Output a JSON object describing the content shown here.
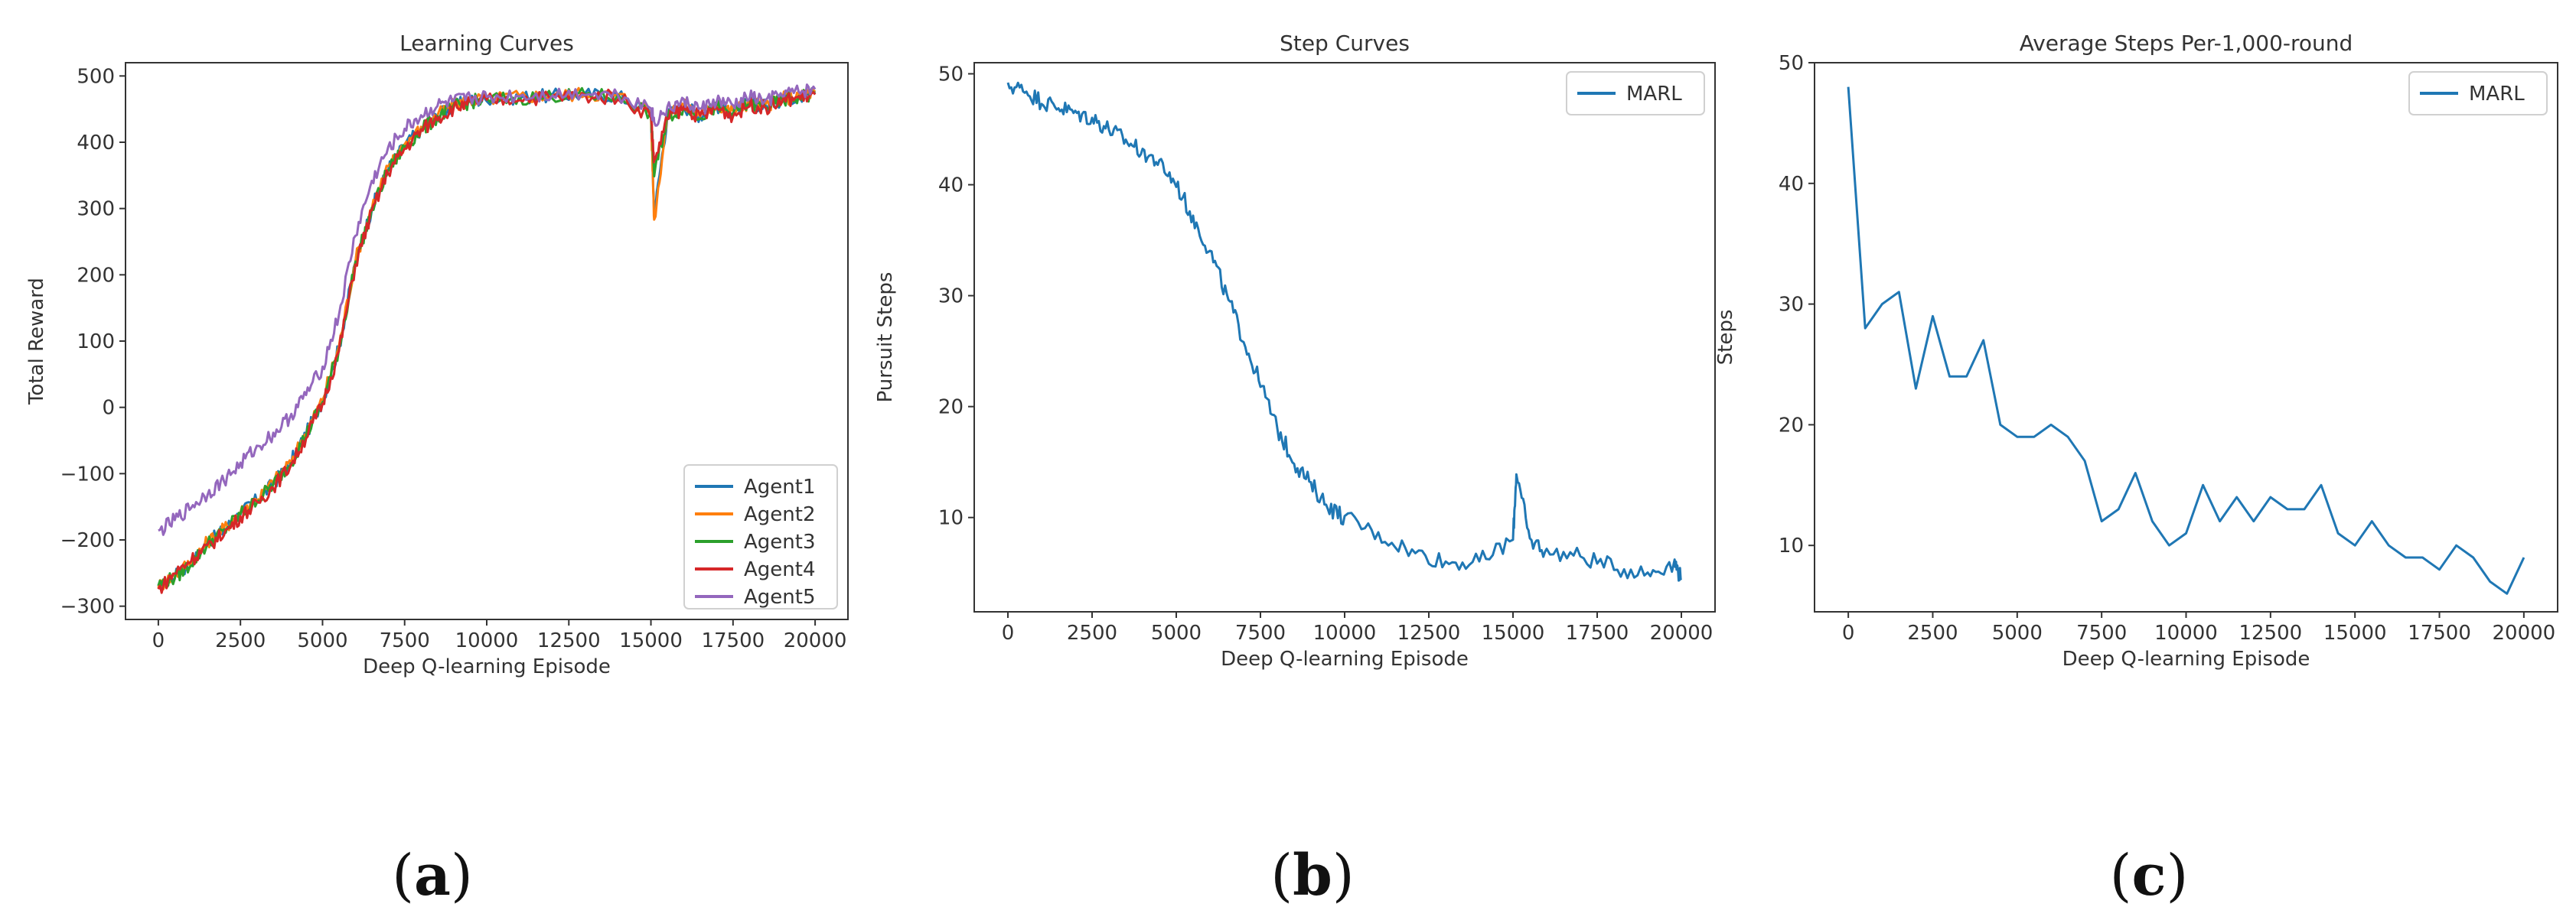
{
  "chart_data": [
    {
      "id": "a",
      "caption": "a",
      "type": "line",
      "title": "Learning Curves",
      "xlabel": "Deep Q-learning Episode",
      "ylabel": "Total Reward",
      "xlim": [
        -1000,
        21000
      ],
      "ylim": [
        -320,
        520
      ],
      "xticks": [
        0,
        2500,
        5000,
        7500,
        10000,
        12500,
        15000,
        17500,
        20000
      ],
      "xtick_labels": [
        "0",
        "2500",
        "5000",
        "7500",
        "10000",
        "12500",
        "15000",
        "17500",
        "20000"
      ],
      "yticks": [
        -300,
        -200,
        -100,
        0,
        100,
        200,
        300,
        400,
        500
      ],
      "ytick_labels": [
        "−300",
        "−200",
        "−100",
        "0",
        "100",
        "200",
        "300",
        "400",
        "500"
      ],
      "legend": "bottom-right",
      "series": [
        {
          "name": "Agent1",
          "color": "#1f77b4",
          "x": [
            0,
            500,
            1000,
            1500,
            2000,
            2500,
            3000,
            3500,
            4000,
            4500,
            5000,
            5500,
            6000,
            6500,
            7000,
            7500,
            8000,
            8500,
            9000,
            9500,
            10000,
            11000,
            12000,
            13000,
            14000,
            15000,
            15100,
            15500,
            16000,
            16500,
            17000,
            17500,
            18000,
            18500,
            19000,
            19500,
            20000
          ],
          "y": [
            -272,
            -255,
            -235,
            -205,
            -185,
            -160,
            -140,
            -115,
            -85,
            -40,
            10,
            90,
            220,
            300,
            360,
            395,
            420,
            440,
            455,
            462,
            465,
            468,
            470,
            472,
            470,
            445,
            290,
            440,
            455,
            440,
            455,
            445,
            460,
            455,
            465,
            470,
            475
          ]
        },
        {
          "name": "Agent2",
          "color": "#ff7f0e",
          "x": [
            0,
            500,
            1000,
            1500,
            2000,
            2500,
            3000,
            3500,
            4000,
            4500,
            5000,
            5500,
            6000,
            6500,
            7000,
            7500,
            8000,
            8500,
            9000,
            9500,
            10000,
            11000,
            12000,
            13000,
            14000,
            15000,
            15100,
            15500,
            16000,
            16500,
            17000,
            17500,
            18000,
            18500,
            19000,
            19500,
            20000
          ],
          "y": [
            -270,
            -253,
            -232,
            -203,
            -183,
            -158,
            -138,
            -113,
            -83,
            -38,
            12,
            92,
            222,
            302,
            362,
            397,
            421,
            441,
            456,
            463,
            466,
            469,
            471,
            473,
            471,
            447,
            282,
            442,
            456,
            441,
            456,
            446,
            461,
            456,
            466,
            471,
            476
          ]
        },
        {
          "name": "Agent3",
          "color": "#2ca02c",
          "x": [
            0,
            500,
            1000,
            1500,
            2000,
            2500,
            3000,
            3500,
            4000,
            4500,
            5000,
            5500,
            6000,
            6500,
            7000,
            7500,
            8000,
            8500,
            9000,
            9500,
            10000,
            11000,
            12000,
            13000,
            14000,
            15000,
            15100,
            15500,
            16000,
            16500,
            17000,
            17500,
            18000,
            18500,
            19000,
            19500,
            20000
          ],
          "y": [
            -268,
            -257,
            -236,
            -206,
            -186,
            -161,
            -141,
            -116,
            -86,
            -42,
            8,
            88,
            218,
            298,
            358,
            393,
            418,
            438,
            454,
            461,
            464,
            467,
            469,
            471,
            469,
            443,
            350,
            438,
            453,
            439,
            453,
            443,
            458,
            453,
            463,
            468,
            473
          ]
        },
        {
          "name": "Agent4",
          "color": "#d62728",
          "x": [
            0,
            500,
            1000,
            1500,
            2000,
            2500,
            3000,
            3500,
            4000,
            4500,
            5000,
            5500,
            6000,
            6500,
            7000,
            7500,
            8000,
            8500,
            9000,
            9500,
            10000,
            11000,
            12000,
            13000,
            14000,
            15000,
            15100,
            15500,
            16000,
            16500,
            17000,
            17500,
            18000,
            18500,
            19000,
            19500,
            20000
          ],
          "y": [
            -275,
            -250,
            -230,
            -210,
            -190,
            -165,
            -145,
            -120,
            -90,
            -45,
            5,
            85,
            215,
            295,
            355,
            390,
            418,
            436,
            452,
            460,
            463,
            466,
            468,
            470,
            468,
            440,
            370,
            436,
            452,
            438,
            452,
            440,
            456,
            452,
            462,
            468,
            472
          ]
        },
        {
          "name": "Agent5",
          "color": "#9467bd",
          "x": [
            0,
            500,
            1000,
            1500,
            2000,
            2500,
            3000,
            3500,
            4000,
            4500,
            5000,
            5500,
            6000,
            6500,
            7000,
            7500,
            8000,
            8500,
            9000,
            9500,
            10000,
            11000,
            12000,
            13000,
            14000,
            15000,
            15100,
            15500,
            16000,
            16500,
            17000,
            17500,
            18000,
            18500,
            19000,
            19500,
            20000
          ],
          "y": [
            -188,
            -170,
            -150,
            -130,
            -110,
            -85,
            -60,
            -40,
            -15,
            20,
            60,
            140,
            260,
            340,
            390,
            420,
            440,
            455,
            462,
            466,
            468,
            470,
            472,
            474,
            472,
            452,
            430,
            450,
            462,
            450,
            462,
            455,
            468,
            462,
            472,
            476,
            480
          ]
        }
      ]
    },
    {
      "id": "b",
      "caption": "b",
      "type": "line",
      "title": "Step Curves",
      "xlabel": "Deep Q-learning Episode",
      "ylabel": "Pursuit Steps",
      "xlim": [
        -1000,
        21000
      ],
      "ylim": [
        1.5,
        51
      ],
      "xticks": [
        0,
        2500,
        5000,
        7500,
        10000,
        12500,
        15000,
        17500,
        20000
      ],
      "xtick_labels": [
        "0",
        "2500",
        "5000",
        "7500",
        "10000",
        "12500",
        "15000",
        "17500",
        "20000"
      ],
      "yticks": [
        10,
        20,
        30,
        40,
        50
      ],
      "ytick_labels": [
        "10",
        "20",
        "30",
        "40",
        "50"
      ],
      "legend": "top-right",
      "series": [
        {
          "name": "MARL",
          "color": "#1f77b4",
          "x": [
            0,
            500,
            1000,
            1500,
            2000,
            2500,
            3000,
            3500,
            4000,
            4500,
            5000,
            5500,
            6000,
            6500,
            7000,
            7500,
            8000,
            8500,
            9000,
            9500,
            10000,
            11000,
            12000,
            13000,
            14000,
            15000,
            15100,
            15500,
            16000,
            17000,
            18000,
            19000,
            19800,
            20000
          ],
          "y": [
            49,
            48.5,
            47.5,
            47,
            46.5,
            46,
            45,
            44,
            43,
            42,
            40,
            37,
            34,
            30,
            26,
            22,
            18,
            15,
            13,
            11,
            10,
            8.5,
            7,
            6,
            6,
            8,
            14,
            8,
            7,
            6.5,
            5.5,
            5,
            6,
            4.5
          ]
        }
      ]
    },
    {
      "id": "c",
      "caption": "c",
      "type": "line",
      "title": "Average Steps Per-1,000-round",
      "xlabel": "Deep Q-learning Episode",
      "ylabel": "Steps",
      "xlim": [
        -1000,
        21000
      ],
      "ylim": [
        4.5,
        50
      ],
      "xticks": [
        0,
        2500,
        5000,
        7500,
        10000,
        12500,
        15000,
        17500,
        20000
      ],
      "xtick_labels": [
        "0",
        "2500",
        "5000",
        "7500",
        "10000",
        "12500",
        "15000",
        "17500",
        "20000"
      ],
      "yticks": [
        10,
        20,
        30,
        40,
        50
      ],
      "ytick_labels": [
        "10",
        "20",
        "30",
        "40",
        "50"
      ],
      "legend": "top-right",
      "series": [
        {
          "name": "MARL",
          "color": "#1f77b4",
          "x": [
            0,
            500,
            1000,
            1500,
            2000,
            2500,
            3000,
            3500,
            4000,
            4500,
            5000,
            5500,
            6000,
            6500,
            7000,
            7500,
            8000,
            8500,
            9000,
            9500,
            10000,
            10500,
            11000,
            11500,
            12000,
            12500,
            13000,
            13500,
            14000,
            14500,
            15000,
            15500,
            16000,
            16500,
            17000,
            17500,
            18000,
            18500,
            19000,
            19500,
            20000
          ],
          "y": [
            48,
            28,
            30,
            31,
            23,
            29,
            24,
            24,
            27,
            20,
            19,
            19,
            20,
            19,
            17,
            12,
            13,
            16,
            12,
            10,
            11,
            15,
            12,
            14,
            12,
            14,
            13,
            13,
            15,
            11,
            10,
            12,
            10,
            9,
            9,
            8,
            10,
            9,
            7,
            6,
            9
          ]
        }
      ]
    }
  ]
}
